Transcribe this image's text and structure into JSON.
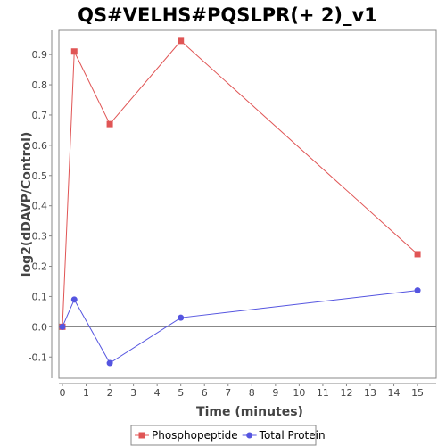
{
  "chart_data": {
    "type": "line",
    "title": "QS#VELHS#PQSLPR(+ 2)_v1",
    "xlabel": "Time (minutes)",
    "ylabel": "log2(dDAVP/Control)",
    "xlim": [
      0,
      15.6
    ],
    "ylim": [
      -0.17,
      0.98
    ],
    "x_ticks": [
      0,
      1,
      2,
      3,
      4,
      5,
      6,
      7,
      8,
      9,
      10,
      11,
      12,
      13,
      14,
      15
    ],
    "y_ticks": [
      -0.1,
      0.0,
      0.1,
      0.2,
      0.3,
      0.4,
      0.5,
      0.6,
      0.7,
      0.8,
      0.9
    ],
    "y_tick_labels": [
      "-0.1",
      "0.0",
      "0.1",
      "0.2",
      "0.3",
      "0.4",
      "0.5",
      "0.6",
      "0.7",
      "0.8",
      "0.9"
    ],
    "zero_line": true,
    "grid": false,
    "legend_position": "bottom",
    "series": [
      {
        "name": "Phosphopeptide",
        "marker": "square",
        "color": "#e05555",
        "x": [
          0,
          0.5,
          2,
          5,
          15
        ],
        "y": [
          0.0,
          0.91,
          0.67,
          0.945,
          0.24
        ]
      },
      {
        "name": "Total Protein",
        "marker": "circle",
        "color": "#5555e0",
        "x": [
          0,
          0.5,
          2,
          5,
          15
        ],
        "y": [
          0.0,
          0.09,
          -0.12,
          0.03,
          0.12
        ]
      }
    ]
  }
}
